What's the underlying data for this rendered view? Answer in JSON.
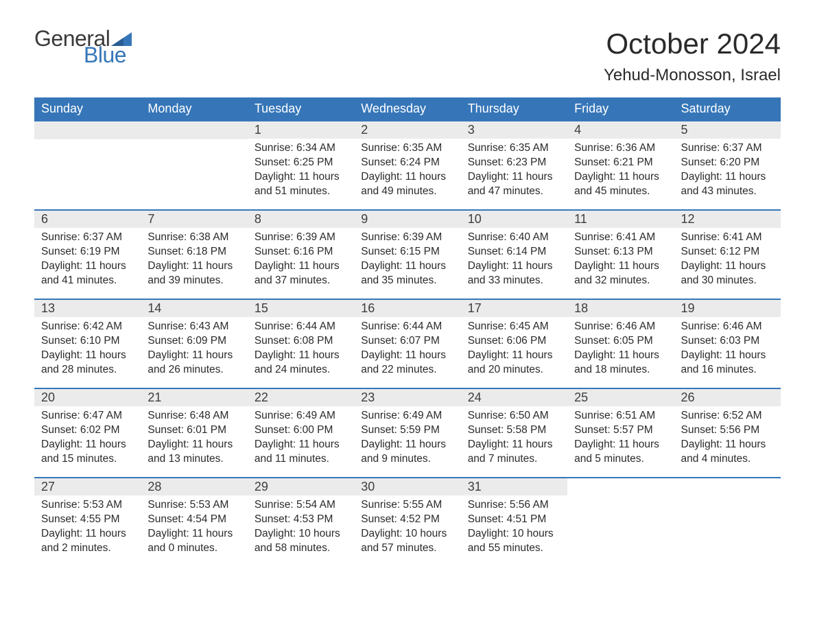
{
  "brand": {
    "logo_general": "General",
    "logo_blue": "Blue",
    "flag_color": "#3676b8"
  },
  "header": {
    "month_title": "October 2024",
    "location": "Yehud-Monosson, Israel"
  },
  "colors": {
    "header_bg": "#3676b8",
    "header_text": "#ffffff",
    "daynum_bg": "#ebebeb",
    "text": "#2a2a2a",
    "row_border": "#3676b8"
  },
  "day_labels": [
    "Sunday",
    "Monday",
    "Tuesday",
    "Wednesday",
    "Thursday",
    "Friday",
    "Saturday"
  ],
  "weeks": [
    [
      {
        "blank": true
      },
      {
        "blank": true
      },
      {
        "num": "1",
        "sunrise": "Sunrise: 6:34 AM",
        "sunset": "Sunset: 6:25 PM",
        "daylight": "Daylight: 11 hours and 51 minutes."
      },
      {
        "num": "2",
        "sunrise": "Sunrise: 6:35 AM",
        "sunset": "Sunset: 6:24 PM",
        "daylight": "Daylight: 11 hours and 49 minutes."
      },
      {
        "num": "3",
        "sunrise": "Sunrise: 6:35 AM",
        "sunset": "Sunset: 6:23 PM",
        "daylight": "Daylight: 11 hours and 47 minutes."
      },
      {
        "num": "4",
        "sunrise": "Sunrise: 6:36 AM",
        "sunset": "Sunset: 6:21 PM",
        "daylight": "Daylight: 11 hours and 45 minutes."
      },
      {
        "num": "5",
        "sunrise": "Sunrise: 6:37 AM",
        "sunset": "Sunset: 6:20 PM",
        "daylight": "Daylight: 11 hours and 43 minutes."
      }
    ],
    [
      {
        "num": "6",
        "sunrise": "Sunrise: 6:37 AM",
        "sunset": "Sunset: 6:19 PM",
        "daylight": "Daylight: 11 hours and 41 minutes."
      },
      {
        "num": "7",
        "sunrise": "Sunrise: 6:38 AM",
        "sunset": "Sunset: 6:18 PM",
        "daylight": "Daylight: 11 hours and 39 minutes."
      },
      {
        "num": "8",
        "sunrise": "Sunrise: 6:39 AM",
        "sunset": "Sunset: 6:16 PM",
        "daylight": "Daylight: 11 hours and 37 minutes."
      },
      {
        "num": "9",
        "sunrise": "Sunrise: 6:39 AM",
        "sunset": "Sunset: 6:15 PM",
        "daylight": "Daylight: 11 hours and 35 minutes."
      },
      {
        "num": "10",
        "sunrise": "Sunrise: 6:40 AM",
        "sunset": "Sunset: 6:14 PM",
        "daylight": "Daylight: 11 hours and 33 minutes."
      },
      {
        "num": "11",
        "sunrise": "Sunrise: 6:41 AM",
        "sunset": "Sunset: 6:13 PM",
        "daylight": "Daylight: 11 hours and 32 minutes."
      },
      {
        "num": "12",
        "sunrise": "Sunrise: 6:41 AM",
        "sunset": "Sunset: 6:12 PM",
        "daylight": "Daylight: 11 hours and 30 minutes."
      }
    ],
    [
      {
        "num": "13",
        "sunrise": "Sunrise: 6:42 AM",
        "sunset": "Sunset: 6:10 PM",
        "daylight": "Daylight: 11 hours and 28 minutes."
      },
      {
        "num": "14",
        "sunrise": "Sunrise: 6:43 AM",
        "sunset": "Sunset: 6:09 PM",
        "daylight": "Daylight: 11 hours and 26 minutes."
      },
      {
        "num": "15",
        "sunrise": "Sunrise: 6:44 AM",
        "sunset": "Sunset: 6:08 PM",
        "daylight": "Daylight: 11 hours and 24 minutes."
      },
      {
        "num": "16",
        "sunrise": "Sunrise: 6:44 AM",
        "sunset": "Sunset: 6:07 PM",
        "daylight": "Daylight: 11 hours and 22 minutes."
      },
      {
        "num": "17",
        "sunrise": "Sunrise: 6:45 AM",
        "sunset": "Sunset: 6:06 PM",
        "daylight": "Daylight: 11 hours and 20 minutes."
      },
      {
        "num": "18",
        "sunrise": "Sunrise: 6:46 AM",
        "sunset": "Sunset: 6:05 PM",
        "daylight": "Daylight: 11 hours and 18 minutes."
      },
      {
        "num": "19",
        "sunrise": "Sunrise: 6:46 AM",
        "sunset": "Sunset: 6:03 PM",
        "daylight": "Daylight: 11 hours and 16 minutes."
      }
    ],
    [
      {
        "num": "20",
        "sunrise": "Sunrise: 6:47 AM",
        "sunset": "Sunset: 6:02 PM",
        "daylight": "Daylight: 11 hours and 15 minutes."
      },
      {
        "num": "21",
        "sunrise": "Sunrise: 6:48 AM",
        "sunset": "Sunset: 6:01 PM",
        "daylight": "Daylight: 11 hours and 13 minutes."
      },
      {
        "num": "22",
        "sunrise": "Sunrise: 6:49 AM",
        "sunset": "Sunset: 6:00 PM",
        "daylight": "Daylight: 11 hours and 11 minutes."
      },
      {
        "num": "23",
        "sunrise": "Sunrise: 6:49 AM",
        "sunset": "Sunset: 5:59 PM",
        "daylight": "Daylight: 11 hours and 9 minutes."
      },
      {
        "num": "24",
        "sunrise": "Sunrise: 6:50 AM",
        "sunset": "Sunset: 5:58 PM",
        "daylight": "Daylight: 11 hours and 7 minutes."
      },
      {
        "num": "25",
        "sunrise": "Sunrise: 6:51 AM",
        "sunset": "Sunset: 5:57 PM",
        "daylight": "Daylight: 11 hours and 5 minutes."
      },
      {
        "num": "26",
        "sunrise": "Sunrise: 6:52 AM",
        "sunset": "Sunset: 5:56 PM",
        "daylight": "Daylight: 11 hours and 4 minutes."
      }
    ],
    [
      {
        "num": "27",
        "sunrise": "Sunrise: 5:53 AM",
        "sunset": "Sunset: 4:55 PM",
        "daylight": "Daylight: 11 hours and 2 minutes."
      },
      {
        "num": "28",
        "sunrise": "Sunrise: 5:53 AM",
        "sunset": "Sunset: 4:54 PM",
        "daylight": "Daylight: 11 hours and 0 minutes."
      },
      {
        "num": "29",
        "sunrise": "Sunrise: 5:54 AM",
        "sunset": "Sunset: 4:53 PM",
        "daylight": "Daylight: 10 hours and 58 minutes."
      },
      {
        "num": "30",
        "sunrise": "Sunrise: 5:55 AM",
        "sunset": "Sunset: 4:52 PM",
        "daylight": "Daylight: 10 hours and 57 minutes."
      },
      {
        "num": "31",
        "sunrise": "Sunrise: 5:56 AM",
        "sunset": "Sunset: 4:51 PM",
        "daylight": "Daylight: 10 hours and 55 minutes."
      },
      {
        "blank": true,
        "noBar": true
      },
      {
        "blank": true,
        "noBar": true
      }
    ]
  ]
}
